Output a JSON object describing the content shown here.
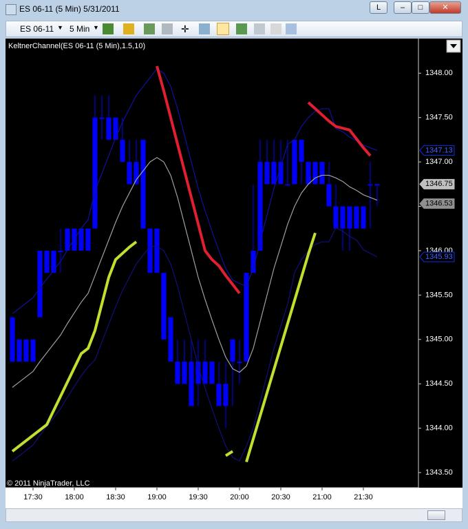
{
  "window": {
    "title": "ES 06-11 (5 Min)  5/31/2011",
    "layout_button": "L"
  },
  "toolbar": {
    "instrument": "ES 06-11",
    "interval": "5 Min"
  },
  "chart_data": {
    "type": "candlestick",
    "indicator_label": "KeltnerChannel(ES 06-11 (5 Min),1.5,10)",
    "copyright": "© 2011 NinjaTrader, LLC",
    "x": [
      "17:15",
      "17:20",
      "17:25",
      "17:30",
      "17:35",
      "17:40",
      "17:45",
      "17:50",
      "17:55",
      "18:00",
      "18:05",
      "18:10",
      "18:15",
      "18:20",
      "18:25",
      "18:30",
      "18:35",
      "18:40",
      "18:45",
      "18:50",
      "18:55",
      "19:00",
      "19:05",
      "19:10",
      "19:15",
      "19:20",
      "19:25",
      "19:30",
      "19:35",
      "19:40",
      "19:45",
      "19:50",
      "19:55",
      "20:00",
      "20:05",
      "20:10",
      "20:15",
      "20:20",
      "20:25",
      "20:30",
      "20:35",
      "20:40",
      "20:45",
      "20:50",
      "20:55",
      "21:00",
      "21:05",
      "21:10",
      "21:15",
      "21:20",
      "21:25",
      "21:30",
      "21:35",
      "21:40"
    ],
    "open": [
      1345.25,
      1345.0,
      1344.75,
      1345.0,
      1345.25,
      1346.0,
      1345.75,
      1346.0,
      1346.0,
      1346.25,
      1346.0,
      1346.25,
      1346.25,
      1347.5,
      1347.5,
      1347.25,
      1347.25,
      1347.0,
      1346.75,
      1347.25,
      1346.25,
      1346.25,
      1345.75,
      1345.25,
      1344.75,
      1344.75,
      1344.75,
      1344.75,
      1344.75,
      1344.5,
      1344.5,
      1344.5,
      1344.75,
      1344.75,
      1344.75,
      1345.75,
      1346.0,
      1347.0,
      1346.75,
      1347.0,
      1346.75,
      1346.75,
      1347.25,
      1347.0,
      1346.75,
      1347.0,
      1346.75,
      1346.5,
      1346.5,
      1346.25,
      1346.5,
      1346.25,
      1346.75,
      1346.75
    ],
    "high": [
      1345.25,
      1345.0,
      1345.0,
      1345.0,
      1346.0,
      1346.0,
      1346.0,
      1346.25,
      1346.25,
      1346.25,
      1346.25,
      1346.25,
      1347.75,
      1347.75,
      1347.75,
      1347.5,
      1347.5,
      1347.25,
      1347.25,
      1347.25,
      1346.25,
      1346.25,
      1345.75,
      1345.25,
      1345.0,
      1345.0,
      1345.0,
      1345.0,
      1345.0,
      1344.75,
      1344.75,
      1344.75,
      1345.0,
      1345.0,
      1345.75,
      1346.75,
      1347.25,
      1347.25,
      1347.25,
      1347.25,
      1347.25,
      1347.25,
      1347.25,
      1347.0,
      1347.0,
      1347.0,
      1347.0,
      1346.75,
      1346.5,
      1346.5,
      1346.5,
      1346.5,
      1347.0,
      1346.75
    ],
    "low": [
      1344.75,
      1344.75,
      1344.75,
      1344.75,
      1345.25,
      1345.75,
      1345.75,
      1345.75,
      1346.0,
      1346.0,
      1346.0,
      1346.0,
      1346.25,
      1347.25,
      1347.25,
      1347.25,
      1347.0,
      1346.75,
      1346.75,
      1346.25,
      1345.75,
      1345.75,
      1345.0,
      1344.75,
      1344.5,
      1344.5,
      1344.25,
      1344.25,
      1344.5,
      1344.5,
      1344.25,
      1344.0,
      1344.25,
      1344.5,
      1344.75,
      1345.75,
      1346.0,
      1346.75,
      1346.75,
      1346.75,
      1346.75,
      1346.75,
      1346.75,
      1346.75,
      1346.75,
      1346.75,
      1346.5,
      1346.25,
      1346.0,
      1346.0,
      1346.25,
      1346.25,
      1346.25,
      1346.5
    ],
    "close": [
      1344.75,
      1344.75,
      1345.0,
      1344.75,
      1346.0,
      1345.75,
      1346.0,
      1346.0,
      1346.25,
      1346.0,
      1346.25,
      1346.0,
      1347.5,
      1347.5,
      1347.25,
      1347.5,
      1347.0,
      1346.75,
      1347.0,
      1346.25,
      1345.75,
      1345.75,
      1345.0,
      1344.75,
      1344.5,
      1344.5,
      1344.25,
      1344.5,
      1344.5,
      1344.75,
      1344.25,
      1344.25,
      1345.0,
      1344.75,
      1345.75,
      1346.0,
      1347.0,
      1346.75,
      1347.0,
      1346.75,
      1346.75,
      1347.25,
      1347.0,
      1346.75,
      1347.0,
      1346.75,
      1346.5,
      1346.25,
      1346.25,
      1346.5,
      1346.25,
      1346.5,
      1346.75,
      1346.75
    ],
    "color": "#0000ff",
    "lines": [
      {
        "color": "#1010a0",
        "values": [
          1345.29,
          1345.35,
          1345.41,
          1345.47,
          1345.58,
          1345.68,
          1345.78,
          1345.88,
          1346.01,
          1346.13,
          1346.25,
          1346.35,
          1346.67,
          1346.87,
          1347.07,
          1347.27,
          1347.45,
          1347.6,
          1347.75,
          1347.85,
          1347.95,
          1348.05,
          1348.0,
          1347.85,
          1347.6,
          1347.3,
          1347.0,
          1346.7,
          1346.45,
          1346.22,
          1346.0,
          1345.8,
          1345.67,
          1345.63,
          1345.6,
          1345.8,
          1346.1,
          1346.4,
          1346.7,
          1346.95,
          1347.2,
          1347.25,
          1347.4,
          1347.5,
          1347.57,
          1347.6,
          1347.6,
          1347.38,
          1347.34,
          1347.28,
          1347.24,
          1347.19,
          1347.16,
          1347.13
        ]
      },
      {
        "color": "#a0a0a0",
        "values": [
          1344.46,
          1344.52,
          1344.58,
          1344.64,
          1344.75,
          1344.85,
          1344.95,
          1345.05,
          1345.18,
          1345.3,
          1345.42,
          1345.52,
          1345.72,
          1345.92,
          1346.12,
          1346.32,
          1346.5,
          1346.65,
          1346.8,
          1346.9,
          1347.0,
          1347.05,
          1347.0,
          1346.85,
          1346.6,
          1346.3,
          1346.0,
          1345.7,
          1345.45,
          1345.22,
          1345.0,
          1344.8,
          1344.67,
          1344.63,
          1344.7,
          1344.9,
          1345.2,
          1345.5,
          1345.8,
          1346.05,
          1346.3,
          1346.5,
          1346.65,
          1346.75,
          1346.82,
          1346.85,
          1346.85,
          1346.82,
          1346.78,
          1346.72,
          1346.68,
          1346.63,
          1346.6,
          1346.57
        ]
      },
      {
        "color": "#10107a",
        "values": [
          1343.63,
          1343.69,
          1343.75,
          1343.81,
          1343.92,
          1344.02,
          1344.12,
          1344.22,
          1344.35,
          1344.47,
          1344.59,
          1344.69,
          1344.77,
          1344.97,
          1345.17,
          1345.37,
          1345.55,
          1345.7,
          1345.85,
          1345.95,
          1346.05,
          1346.05,
          1346.0,
          1345.85,
          1345.6,
          1345.3,
          1345.0,
          1344.7,
          1344.45,
          1344.22,
          1344.0,
          1343.8,
          1343.67,
          1343.63,
          1343.8,
          1344.0,
          1344.3,
          1344.6,
          1344.9,
          1345.15,
          1345.4,
          1345.75,
          1345.9,
          1346.0,
          1346.07,
          1346.1,
          1346.1,
          1346.26,
          1346.22,
          1346.16,
          1346.12,
          1346.01,
          1345.97,
          1345.93
        ]
      },
      {
        "color": "#c0e030",
        "width": 4,
        "values": [
          1343.74,
          1343.8,
          1343.86,
          1343.92,
          1343.98,
          1344.04,
          1344.2,
          1344.36,
          1344.52,
          1344.68,
          1344.84,
          1344.9,
          1345.1,
          1345.4,
          1345.7,
          1345.9,
          1345.97,
          1346.04,
          1346.1,
          null,
          null,
          null,
          null,
          null,
          null,
          null,
          null,
          null,
          null,
          null,
          null,
          1343.69,
          1343.74,
          null,
          1343.62,
          1343.88,
          1344.14,
          1344.4,
          1344.66,
          1344.92,
          1345.18,
          1345.44,
          1345.7,
          1345.96,
          1346.2,
          null,
          null,
          null,
          null,
          null,
          null,
          null,
          null,
          null
        ]
      },
      {
        "color": "#e02030",
        "width": 4,
        "values": [
          null,
          null,
          null,
          null,
          null,
          null,
          null,
          null,
          null,
          null,
          null,
          null,
          null,
          null,
          null,
          null,
          null,
          null,
          null,
          null,
          null,
          1348.08,
          1347.8,
          1347.5,
          1347.2,
          1346.9,
          1346.6,
          1346.3,
          1346.0,
          1345.9,
          1345.83,
          1345.72,
          1345.62,
          1345.52,
          null,
          null,
          null,
          null,
          null,
          null,
          null,
          null,
          null,
          1347.67,
          1347.6,
          1347.53,
          1347.46,
          1347.4,
          1347.38,
          1347.36,
          1347.26,
          1347.16,
          1347.07,
          null
        ]
      }
    ],
    "price_markers": [
      {
        "value": 1347.13,
        "color": "#1030e0"
      },
      {
        "value": 1346.75,
        "color": "#c0c0c0"
      },
      {
        "value": 1346.53,
        "color": "#909090"
      },
      {
        "value": 1345.93,
        "color": "#1030e0"
      }
    ],
    "ylim": [
      1343.33,
      1348.39
    ],
    "yticks": [
      {
        "value": 1343.5,
        "label": "1343.50"
      },
      {
        "value": 1344,
        "label": "1344.00"
      },
      {
        "value": 1344.5,
        "label": "1344.50"
      },
      {
        "value": 1345,
        "label": "1345.00"
      },
      {
        "value": 1345.5,
        "label": "1345.50"
      },
      {
        "value": 1346,
        "label": "1346.00"
      },
      {
        "value": 1346.5,
        "label": "1346.50"
      },
      {
        "value": 1347,
        "label": "1347.00"
      },
      {
        "value": 1347.5,
        "label": "1347.50"
      },
      {
        "value": 1348,
        "label": "1348.00"
      }
    ],
    "xticks": [
      "17:30",
      "18:00",
      "18:30",
      "19:00",
      "19:30",
      "20:00",
      "20:30",
      "21:00",
      "21:30"
    ]
  }
}
